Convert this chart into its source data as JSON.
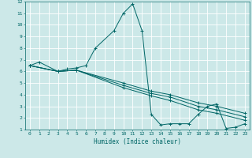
{
  "title": "",
  "xlabel": "Humidex (Indice chaleur)",
  "ylabel": "",
  "bg_color": "#cce8e8",
  "grid_color": "#ffffff",
  "line_color": "#006666",
  "xlim": [
    -0.5,
    23.5
  ],
  "ylim": [
    1,
    12
  ],
  "xticks": [
    0,
    1,
    2,
    3,
    4,
    5,
    6,
    7,
    8,
    9,
    10,
    11,
    12,
    13,
    14,
    15,
    16,
    17,
    18,
    19,
    20,
    21,
    22,
    23
  ],
  "yticks": [
    1,
    2,
    3,
    4,
    5,
    6,
    7,
    8,
    9,
    10,
    11,
    12
  ],
  "series": [
    {
      "x": [
        0,
        1,
        3,
        4,
        5,
        6,
        7,
        9,
        10,
        11,
        12,
        13,
        14,
        15,
        16,
        17,
        18,
        19,
        20,
        21,
        22,
        23
      ],
      "y": [
        6.5,
        6.8,
        6.0,
        6.2,
        6.3,
        6.5,
        8.0,
        9.5,
        11.0,
        11.8,
        9.5,
        2.3,
        1.4,
        1.5,
        1.5,
        1.5,
        2.3,
        3.0,
        3.2,
        1.1,
        1.2,
        1.5
      ]
    },
    {
      "x": [
        0,
        3,
        5,
        10,
        13,
        15,
        18,
        20,
        23
      ],
      "y": [
        6.5,
        6.0,
        6.1,
        5.0,
        4.3,
        4.0,
        3.3,
        3.0,
        2.4
      ]
    },
    {
      "x": [
        0,
        3,
        5,
        10,
        13,
        15,
        18,
        20,
        23
      ],
      "y": [
        6.5,
        6.0,
        6.1,
        4.8,
        4.1,
        3.8,
        3.0,
        2.7,
        2.1
      ]
    },
    {
      "x": [
        0,
        3,
        5,
        10,
        13,
        15,
        18,
        20,
        23
      ],
      "y": [
        6.5,
        6.0,
        6.1,
        4.6,
        3.9,
        3.5,
        2.7,
        2.4,
        1.8
      ]
    }
  ]
}
